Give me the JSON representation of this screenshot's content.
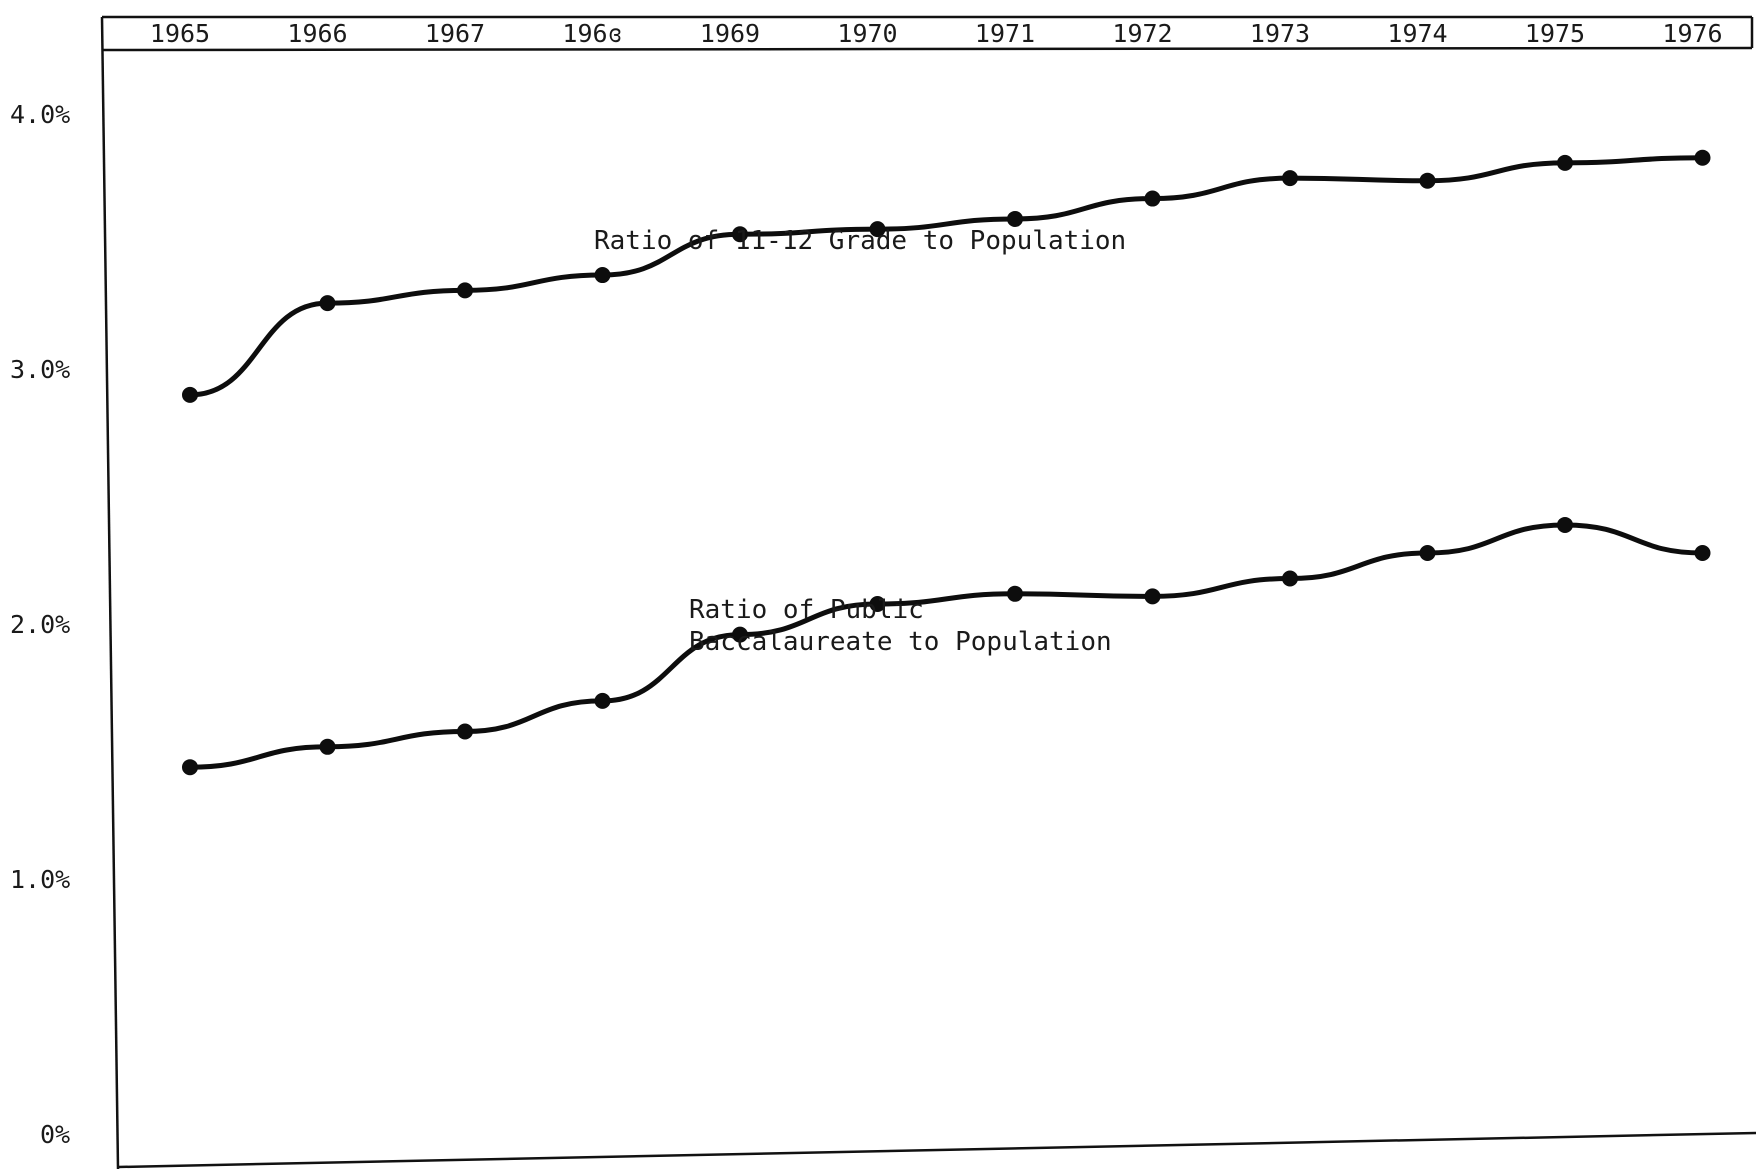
{
  "chart_data": {
    "type": "line",
    "title": "",
    "xlabel": "",
    "ylabel": "",
    "categories": [
      "1965",
      "1966",
      "1967",
      "1968",
      "1969",
      "1970",
      "1971",
      "1972",
      "1973",
      "1974",
      "1975",
      "1976"
    ],
    "x_tick_labels": [
      "1965",
      "1966",
      "1967",
      "196ɞ",
      "1969",
      "1970",
      "1971",
      "1972",
      "1973",
      "1974",
      "1975",
      "1976"
    ],
    "y_tick_labels": [
      "4.0%",
      "3.0%",
      "2.0%",
      "1.0%",
      "0%"
    ],
    "y_tick_values": [
      4.0,
      3.0,
      2.0,
      1.0,
      0.0
    ],
    "ylim": [
      0,
      4.0
    ],
    "grid": false,
    "legend": "none",
    "series": [
      {
        "values": [
          3.02,
          3.38,
          3.43,
          3.49,
          3.65,
          3.67,
          3.71,
          3.79,
          3.87,
          3.86,
          3.93,
          3.95
        ]
      },
      {
        "values": [
          1.56,
          1.64,
          1.7,
          1.82,
          2.08,
          2.2,
          2.24,
          2.23,
          2.3,
          2.4,
          2.51,
          2.4
        ]
      }
    ],
    "annotations": [
      {
        "lines": [
          "Ratio of 11-12 Grade to Population"
        ],
        "series": 0
      },
      {
        "lines": [
          "Ratio of Public",
          "Baccalaureate to Population"
        ],
        "series": 1
      }
    ],
    "colors": {
      "ink": "#0d0d0d",
      "background": "#ffffff"
    }
  }
}
